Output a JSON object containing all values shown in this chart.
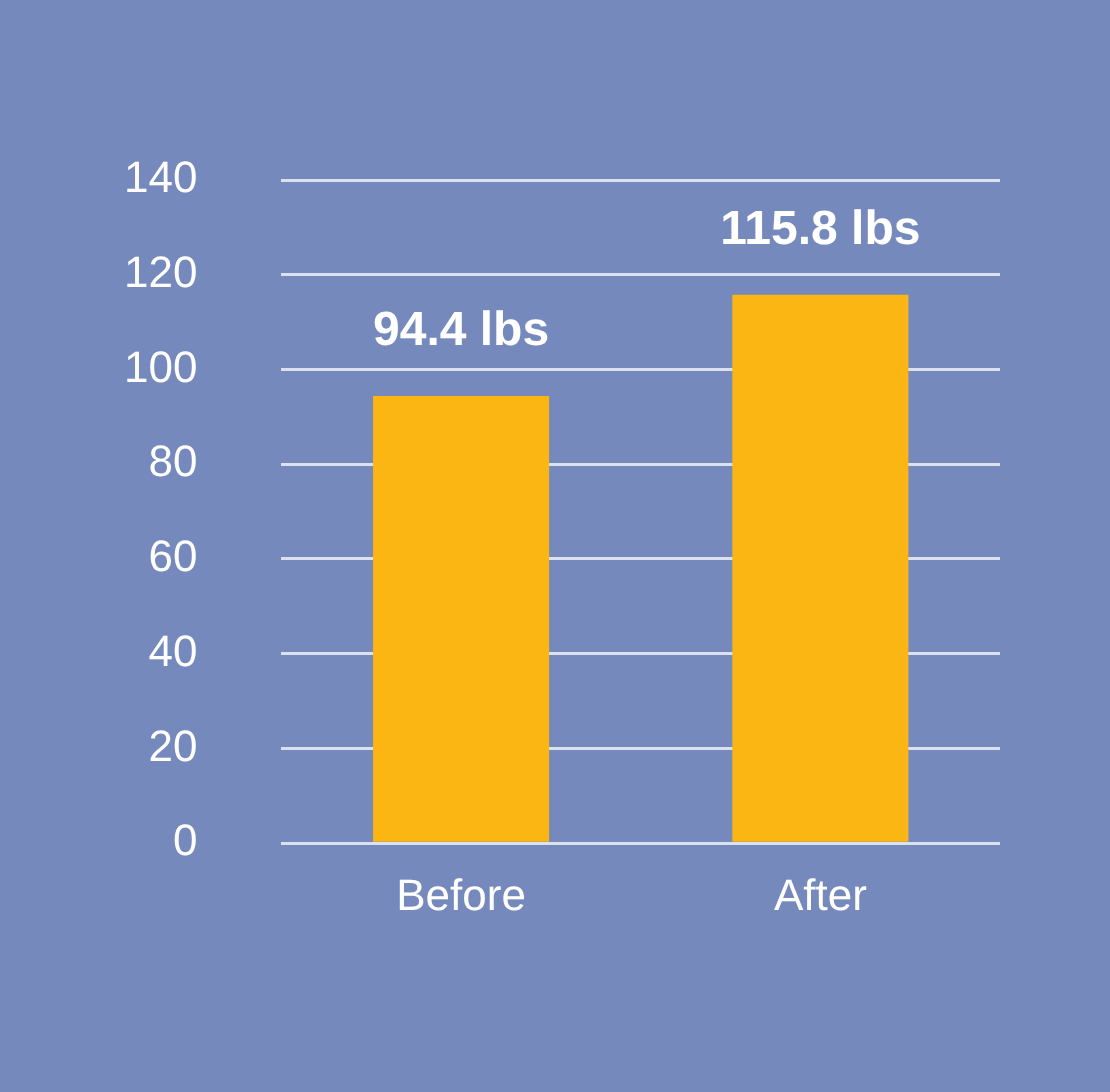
{
  "chart_data": {
    "type": "bar",
    "categories": [
      "Before",
      "After"
    ],
    "values": [
      94.4,
      115.8
    ],
    "color": "#fbb614",
    "value_labels": [
      "94.4 lbs",
      "115.8 lbs"
    ],
    "ylim": [
      0,
      140
    ],
    "yticks": [
      0,
      20,
      40,
      60,
      80,
      100,
      120,
      140
    ],
    "grid": "y",
    "legend": false
  }
}
